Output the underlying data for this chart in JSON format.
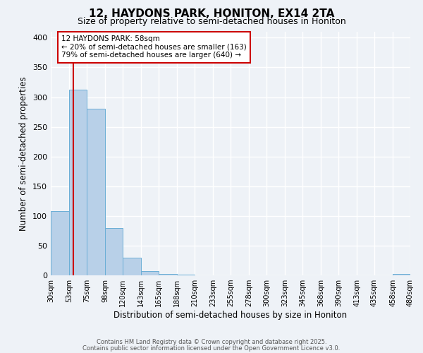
{
  "title": "12, HAYDONS PARK, HONITON, EX14 2TA",
  "subtitle": "Size of property relative to semi-detached houses in Honiton",
  "xlabel": "Distribution of semi-detached houses by size in Honiton",
  "ylabel": "Number of semi-detached properties",
  "bar_edges": [
    30,
    53,
    75,
    98,
    120,
    143,
    165,
    188,
    210,
    233,
    255,
    278,
    300,
    323,
    345,
    368,
    390,
    413,
    435,
    458,
    480
  ],
  "bar_heights": [
    108,
    313,
    280,
    80,
    30,
    7,
    2,
    1,
    0,
    0,
    0,
    0,
    0,
    0,
    0,
    0,
    0,
    0,
    0,
    2
  ],
  "bar_color": "#b8d0e8",
  "bar_edgecolor": "#6aaed6",
  "property_size": 58,
  "vline_color": "#cc0000",
  "ylim": [
    0,
    410
  ],
  "annotation_title": "12 HAYDONS PARK: 58sqm",
  "annotation_line1": "← 20% of semi-detached houses are smaller (163)",
  "annotation_line2": "79% of semi-detached houses are larger (640) →",
  "annotation_box_color": "#cc0000",
  "annotation_bg": "#ffffff",
  "footer1": "Contains HM Land Registry data © Crown copyright and database right 2025.",
  "footer2": "Contains public sector information licensed under the Open Government Licence v3.0.",
  "bg_color": "#eef2f7",
  "grid_color": "#ffffff",
  "title_fontsize": 11,
  "subtitle_fontsize": 9,
  "tick_labels": [
    "30sqm",
    "53sqm",
    "75sqm",
    "98sqm",
    "120sqm",
    "143sqm",
    "165sqm",
    "188sqm",
    "210sqm",
    "233sqm",
    "255sqm",
    "278sqm",
    "300sqm",
    "323sqm",
    "345sqm",
    "368sqm",
    "390sqm",
    "413sqm",
    "435sqm",
    "458sqm",
    "480sqm"
  ]
}
